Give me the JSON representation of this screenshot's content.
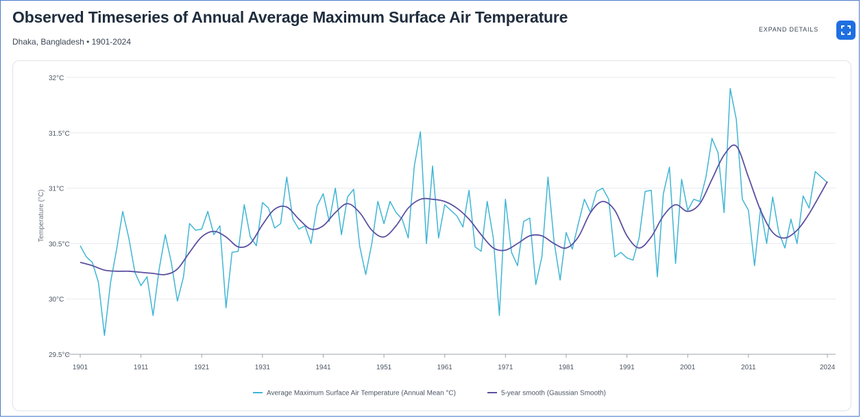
{
  "header": {
    "title": "Observed Timeseries of Annual Average Maximum Surface Air Temperature",
    "subtitle": "Dhaka, Bangladesh • 1901-2024",
    "expand_label": "EXPAND DETAILS",
    "expand_icon": "expand-icon"
  },
  "colors": {
    "annual": "#3fb5d4",
    "smooth": "#5b4fa0",
    "grid": "#e6e9ee",
    "accent": "#1f6fe0"
  },
  "chart_data": {
    "type": "line",
    "ylabel": "Temperature (°C)",
    "xlabel": "",
    "xlim": [
      1901,
      2024
    ],
    "ylim": [
      29.5,
      32
    ],
    "y_ticks": [
      29.5,
      30,
      30.5,
      31,
      31.5,
      32
    ],
    "y_tick_labels": [
      "29.5°C",
      "30°C",
      "30.5°C",
      "31°C",
      "31.5°C",
      "32°C"
    ],
    "x_ticks": [
      1901,
      1911,
      1921,
      1931,
      1941,
      1951,
      1961,
      1971,
      1981,
      1991,
      2001,
      2011,
      2024
    ],
    "grid": true,
    "legend_position": "bottom",
    "series": [
      {
        "name": "Average Maximum Surface Air Temperature (Annual Mean °C)",
        "x": [
          1901,
          1902,
          1903,
          1904,
          1905,
          1906,
          1907,
          1908,
          1909,
          1910,
          1911,
          1912,
          1913,
          1914,
          1915,
          1916,
          1917,
          1918,
          1919,
          1920,
          1921,
          1922,
          1923,
          1924,
          1925,
          1926,
          1927,
          1928,
          1929,
          1930,
          1931,
          1932,
          1933,
          1934,
          1935,
          1936,
          1937,
          1938,
          1939,
          1940,
          1941,
          1942,
          1943,
          1944,
          1945,
          1946,
          1947,
          1948,
          1949,
          1950,
          1951,
          1952,
          1953,
          1954,
          1955,
          1956,
          1957,
          1958,
          1959,
          1960,
          1961,
          1962,
          1963,
          1964,
          1965,
          1966,
          1967,
          1968,
          1969,
          1970,
          1971,
          1972,
          1973,
          1974,
          1975,
          1976,
          1977,
          1978,
          1979,
          1980,
          1981,
          1982,
          1983,
          1984,
          1985,
          1986,
          1987,
          1988,
          1989,
          1990,
          1991,
          1992,
          1993,
          1994,
          1995,
          1996,
          1997,
          1998,
          1999,
          2000,
          2001,
          2002,
          2003,
          2004,
          2005,
          2006,
          2007,
          2008,
          2009,
          2010,
          2011,
          2012,
          2013,
          2014,
          2015,
          2016,
          2017,
          2018,
          2019,
          2020,
          2021,
          2022,
          2023,
          2024
        ],
        "values": [
          30.48,
          30.38,
          30.33,
          30.15,
          29.67,
          30.15,
          30.45,
          30.79,
          30.55,
          30.24,
          30.12,
          30.2,
          29.85,
          30.27,
          30.58,
          30.33,
          29.98,
          30.2,
          30.68,
          30.62,
          30.63,
          30.79,
          30.58,
          30.66,
          29.92,
          30.42,
          30.43,
          30.85,
          30.56,
          30.48,
          30.87,
          30.82,
          30.64,
          30.68,
          31.1,
          30.72,
          30.63,
          30.66,
          30.5,
          30.84,
          30.95,
          30.7,
          31.0,
          30.58,
          30.92,
          30.99,
          30.48,
          30.22,
          30.5,
          30.88,
          30.68,
          30.88,
          30.78,
          30.72,
          30.55,
          31.2,
          31.51,
          30.5,
          31.2,
          30.55,
          30.85,
          30.8,
          30.75,
          30.65,
          30.98,
          30.47,
          30.43,
          30.88,
          30.55,
          29.85,
          30.9,
          30.42,
          30.3,
          30.7,
          30.73,
          30.13,
          30.38,
          31.1,
          30.52,
          30.17,
          30.6,
          30.45,
          30.68,
          30.9,
          30.78,
          30.97,
          31.0,
          30.9,
          30.38,
          30.42,
          30.37,
          30.35,
          30.55,
          30.97,
          30.98,
          30.2,
          30.95,
          31.19,
          30.32,
          31.08,
          30.8,
          30.9,
          30.88,
          31.1,
          31.45,
          31.32,
          30.78,
          31.9,
          31.62,
          30.9,
          30.8,
          30.3,
          30.82,
          30.5,
          30.92,
          30.6,
          30.46,
          30.72,
          30.5,
          30.93,
          30.82,
          31.15,
          31.1,
          31.05
        ]
      },
      {
        "name": "5-year smooth (Gaussian Smooth)",
        "x": [
          1901,
          1903,
          1905,
          1907,
          1909,
          1911,
          1913,
          1915,
          1917,
          1919,
          1921,
          1923,
          1925,
          1927,
          1929,
          1931,
          1933,
          1935,
          1937,
          1939,
          1941,
          1943,
          1945,
          1947,
          1949,
          1951,
          1953,
          1955,
          1957,
          1959,
          1961,
          1963,
          1965,
          1967,
          1969,
          1971,
          1973,
          1975,
          1977,
          1979,
          1981,
          1983,
          1985,
          1987,
          1989,
          1991,
          1993,
          1995,
          1997,
          1999,
          2001,
          2003,
          2005,
          2007,
          2009,
          2011,
          2013,
          2015,
          2017,
          2019,
          2021,
          2024
        ],
        "values": [
          30.33,
          30.3,
          30.26,
          30.25,
          30.25,
          30.24,
          30.23,
          30.22,
          30.27,
          30.42,
          30.56,
          30.61,
          30.56,
          30.47,
          30.5,
          30.67,
          30.81,
          30.83,
          30.72,
          30.63,
          30.66,
          30.78,
          30.86,
          30.78,
          30.62,
          30.56,
          30.66,
          30.82,
          30.9,
          30.9,
          30.88,
          30.82,
          30.72,
          30.58,
          30.46,
          30.44,
          30.5,
          30.57,
          30.57,
          30.5,
          30.46,
          30.56,
          30.78,
          30.88,
          30.8,
          30.57,
          30.46,
          30.56,
          30.75,
          30.85,
          30.79,
          30.86,
          31.08,
          31.3,
          31.38,
          31.1,
          30.8,
          30.6,
          30.55,
          30.62,
          30.77,
          31.06
        ]
      }
    ]
  }
}
